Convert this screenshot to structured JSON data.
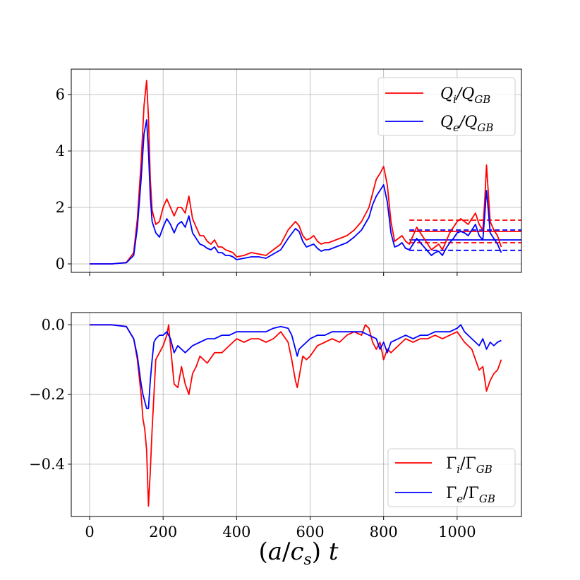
{
  "chart_data": [
    {
      "type": "line",
      "panel": "top",
      "xlim": [
        -50,
        1175
      ],
      "ylim": [
        -0.3,
        6.9
      ],
      "xticks": [
        0,
        200,
        400,
        600,
        800,
        1000
      ],
      "yticks": [
        0,
        2,
        4,
        6
      ],
      "ytick_labels": [
        "0",
        "2",
        "4",
        "6"
      ],
      "grid": true,
      "legend": "top-right",
      "series": [
        {
          "name": "Q_i/Q_GB",
          "color": "#ff0000",
          "x": [
            0,
            60,
            100,
            120,
            130,
            140,
            148,
            155,
            160,
            165,
            170,
            180,
            190,
            200,
            210,
            220,
            230,
            240,
            250,
            260,
            270,
            280,
            290,
            300,
            310,
            320,
            330,
            340,
            350,
            360,
            370,
            380,
            390,
            400,
            420,
            440,
            460,
            480,
            500,
            520,
            540,
            560,
            570,
            580,
            590,
            600,
            610,
            620,
            630,
            640,
            650,
            660,
            680,
            700,
            720,
            740,
            760,
            770,
            780,
            790,
            800,
            810,
            820,
            830,
            840,
            850,
            860,
            870,
            880,
            890,
            900,
            910,
            920,
            930,
            940,
            950,
            960,
            970,
            980,
            990,
            1000,
            1010,
            1020,
            1030,
            1040,
            1050,
            1060,
            1070,
            1075,
            1080,
            1085,
            1090,
            1100,
            1110,
            1120
          ],
          "y": [
            0,
            0,
            0.05,
            0.4,
            1.6,
            3.6,
            5.6,
            6.5,
            5.2,
            3.0,
            1.9,
            1.4,
            1.5,
            2.0,
            2.3,
            2.0,
            1.7,
            2.0,
            2.0,
            1.8,
            2.4,
            1.6,
            1.3,
            1.0,
            1.0,
            0.8,
            0.7,
            0.85,
            0.6,
            0.6,
            0.5,
            0.45,
            0.4,
            0.25,
            0.3,
            0.4,
            0.35,
            0.3,
            0.5,
            0.7,
            1.2,
            1.5,
            1.35,
            1.0,
            0.85,
            0.9,
            1.0,
            0.8,
            0.7,
            0.75,
            0.75,
            0.8,
            0.9,
            1.0,
            1.2,
            1.5,
            2.0,
            2.5,
            3.0,
            3.2,
            3.45,
            2.8,
            1.5,
            0.8,
            0.9,
            1.0,
            0.8,
            0.7,
            1.0,
            1.3,
            1.1,
            0.9,
            0.7,
            0.5,
            0.6,
            0.7,
            0.5,
            0.8,
            1.1,
            1.3,
            1.5,
            1.6,
            1.5,
            1.4,
            1.6,
            1.8,
            1.4,
            1.2,
            2.2,
            3.5,
            2.5,
            1.5,
            1.2,
            1.0,
            0.6
          ]
        },
        {
          "name": "Q_e/Q_GB",
          "color": "#0000ff",
          "x": [
            0,
            60,
            100,
            120,
            130,
            140,
            148,
            155,
            160,
            165,
            170,
            180,
            190,
            200,
            210,
            220,
            230,
            240,
            250,
            260,
            270,
            280,
            290,
            300,
            310,
            320,
            330,
            340,
            350,
            360,
            370,
            380,
            390,
            400,
            420,
            440,
            460,
            480,
            500,
            520,
            540,
            560,
            570,
            580,
            590,
            600,
            610,
            620,
            630,
            640,
            650,
            660,
            680,
            700,
            720,
            740,
            760,
            770,
            780,
            790,
            800,
            810,
            820,
            830,
            840,
            850,
            860,
            870,
            880,
            890,
            900,
            910,
            920,
            930,
            940,
            950,
            960,
            970,
            980,
            990,
            1000,
            1010,
            1020,
            1030,
            1040,
            1050,
            1060,
            1070,
            1075,
            1080,
            1085,
            1090,
            1100,
            1110,
            1120
          ],
          "y": [
            0,
            0,
            0.04,
            0.3,
            1.3,
            3.0,
            4.6,
            5.1,
            4.0,
            2.4,
            1.5,
            1.1,
            0.95,
            1.3,
            1.6,
            1.4,
            1.1,
            1.4,
            1.5,
            1.3,
            1.7,
            1.1,
            0.9,
            0.7,
            0.65,
            0.55,
            0.5,
            0.6,
            0.4,
            0.4,
            0.3,
            0.3,
            0.25,
            0.15,
            0.2,
            0.25,
            0.25,
            0.2,
            0.35,
            0.5,
            0.9,
            1.25,
            1.15,
            0.8,
            0.6,
            0.65,
            0.7,
            0.55,
            0.45,
            0.5,
            0.5,
            0.55,
            0.65,
            0.75,
            0.95,
            1.2,
            1.65,
            2.1,
            2.4,
            2.6,
            2.8,
            2.2,
            1.1,
            0.6,
            0.65,
            0.75,
            0.55,
            0.5,
            0.7,
            0.9,
            0.75,
            0.6,
            0.45,
            0.3,
            0.4,
            0.45,
            0.3,
            0.55,
            0.75,
            0.9,
            1.1,
            1.15,
            1.1,
            1.0,
            1.2,
            1.4,
            1.0,
            0.85,
            1.7,
            2.6,
            1.9,
            1.1,
            0.9,
            0.7,
            0.4
          ]
        }
      ],
      "hlines": [
        {
          "y": 1.15,
          "color": "#ff0000",
          "style": "solid",
          "xmin": 870,
          "xmax": 1175
        },
        {
          "y": 1.55,
          "color": "#ff0000",
          "style": "dashed",
          "xmin": 870,
          "xmax": 1175
        },
        {
          "y": 0.75,
          "color": "#ff0000",
          "style": "dashed",
          "xmin": 870,
          "xmax": 1175
        },
        {
          "y": 0.85,
          "color": "#0000ff",
          "style": "solid",
          "xmin": 870,
          "xmax": 1175
        },
        {
          "y": 1.2,
          "color": "#0000ff",
          "style": "dashed",
          "xmin": 870,
          "xmax": 1175
        },
        {
          "y": 0.48,
          "color": "#0000ff",
          "style": "dashed",
          "xmin": 870,
          "xmax": 1175
        }
      ]
    },
    {
      "type": "line",
      "panel": "bottom",
      "xlim": [
        -50,
        1175
      ],
      "ylim": [
        -0.55,
        0.035
      ],
      "xticks": [
        0,
        200,
        400,
        600,
        800,
        1000
      ],
      "xtick_labels": [
        "0",
        "200",
        "400",
        "600",
        "800",
        "1000"
      ],
      "yticks": [
        0.0,
        -0.2,
        -0.4
      ],
      "ytick_labels": [
        "0.0",
        "−0.2",
        "−0.4"
      ],
      "xlabel": "(a/c_s) t",
      "grid": true,
      "legend": "bottom-right",
      "series": [
        {
          "name": "Γ_i/Γ_GB",
          "color": "#ff0000",
          "x": [
            0,
            60,
            100,
            120,
            130,
            140,
            145,
            150,
            155,
            160,
            165,
            170,
            175,
            180,
            190,
            200,
            210,
            215,
            220,
            230,
            240,
            250,
            260,
            270,
            280,
            290,
            300,
            320,
            340,
            360,
            380,
            400,
            420,
            440,
            460,
            480,
            500,
            520,
            540,
            550,
            560,
            565,
            570,
            580,
            590,
            600,
            620,
            640,
            660,
            680,
            700,
            720,
            740,
            750,
            760,
            770,
            780,
            790,
            800,
            810,
            820,
            840,
            860,
            880,
            900,
            920,
            940,
            960,
            980,
            1000,
            1020,
            1040,
            1050,
            1060,
            1070,
            1080,
            1090,
            1100,
            1110,
            1120
          ],
          "y": [
            0,
            0,
            -0.005,
            -0.04,
            -0.1,
            -0.2,
            -0.27,
            -0.3,
            -0.36,
            -0.52,
            -0.42,
            -0.3,
            -0.2,
            -0.1,
            -0.08,
            -0.06,
            -0.03,
            0.0,
            -0.06,
            -0.17,
            -0.18,
            -0.12,
            -0.17,
            -0.2,
            -0.14,
            -0.12,
            -0.09,
            -0.11,
            -0.08,
            -0.08,
            -0.06,
            -0.04,
            -0.05,
            -0.04,
            -0.04,
            -0.05,
            -0.04,
            -0.02,
            -0.05,
            -0.1,
            -0.16,
            -0.18,
            -0.15,
            -0.09,
            -0.1,
            -0.09,
            -0.06,
            -0.05,
            -0.04,
            -0.05,
            -0.03,
            -0.02,
            -0.03,
            0.0,
            -0.01,
            -0.05,
            -0.07,
            -0.05,
            -0.1,
            -0.07,
            -0.08,
            -0.06,
            -0.04,
            -0.05,
            -0.04,
            -0.04,
            -0.03,
            -0.04,
            -0.03,
            -0.02,
            -0.05,
            -0.07,
            -0.1,
            -0.13,
            -0.12,
            -0.19,
            -0.16,
            -0.14,
            -0.13,
            -0.1
          ]
        },
        {
          "name": "Γ_e/Γ_GB",
          "color": "#0000ff",
          "x": [
            0,
            60,
            100,
            120,
            130,
            140,
            145,
            150,
            155,
            160,
            165,
            170,
            175,
            180,
            190,
            200,
            210,
            220,
            230,
            240,
            250,
            260,
            280,
            300,
            320,
            340,
            360,
            380,
            400,
            420,
            440,
            460,
            480,
            500,
            520,
            540,
            550,
            560,
            565,
            570,
            580,
            600,
            620,
            640,
            660,
            680,
            700,
            720,
            740,
            760,
            780,
            790,
            800,
            810,
            820,
            840,
            860,
            880,
            900,
            920,
            940,
            960,
            980,
            1000,
            1010,
            1020,
            1040,
            1060,
            1070,
            1080,
            1090,
            1100,
            1110,
            1120
          ],
          "y": [
            0,
            0,
            -0.005,
            -0.04,
            -0.09,
            -0.17,
            -0.2,
            -0.22,
            -0.24,
            -0.24,
            -0.16,
            -0.1,
            -0.05,
            -0.04,
            -0.03,
            -0.03,
            -0.02,
            -0.04,
            -0.08,
            -0.06,
            -0.07,
            -0.08,
            -0.06,
            -0.05,
            -0.04,
            -0.04,
            -0.03,
            -0.03,
            -0.02,
            -0.02,
            -0.02,
            -0.02,
            -0.02,
            -0.01,
            -0.005,
            -0.01,
            -0.03,
            -0.07,
            -0.09,
            -0.07,
            -0.06,
            -0.04,
            -0.03,
            -0.03,
            -0.02,
            -0.02,
            -0.02,
            -0.02,
            -0.02,
            -0.03,
            -0.04,
            -0.07,
            -0.05,
            -0.08,
            -0.05,
            -0.04,
            -0.03,
            -0.04,
            -0.03,
            -0.03,
            -0.02,
            -0.02,
            -0.02,
            -0.01,
            0.0,
            -0.02,
            -0.04,
            -0.06,
            -0.04,
            -0.07,
            -0.05,
            -0.06,
            -0.05,
            -0.045
          ]
        }
      ]
    }
  ]
}
